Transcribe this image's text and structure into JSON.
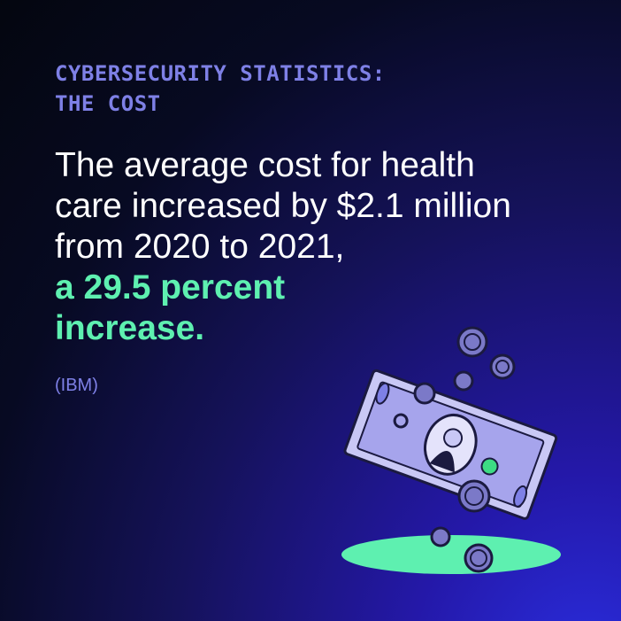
{
  "eyebrow": {
    "lines": [
      "CYBERSECURITY STATISTICS:",
      "THE COST"
    ]
  },
  "headline": {
    "lines": [
      "The average cost for health",
      "care increased by $2.1 million",
      "from 2020 to 2021,"
    ],
    "highlight_lines": [
      "a 29.5 percent",
      "increase."
    ]
  },
  "source": "(IBM)"
}
